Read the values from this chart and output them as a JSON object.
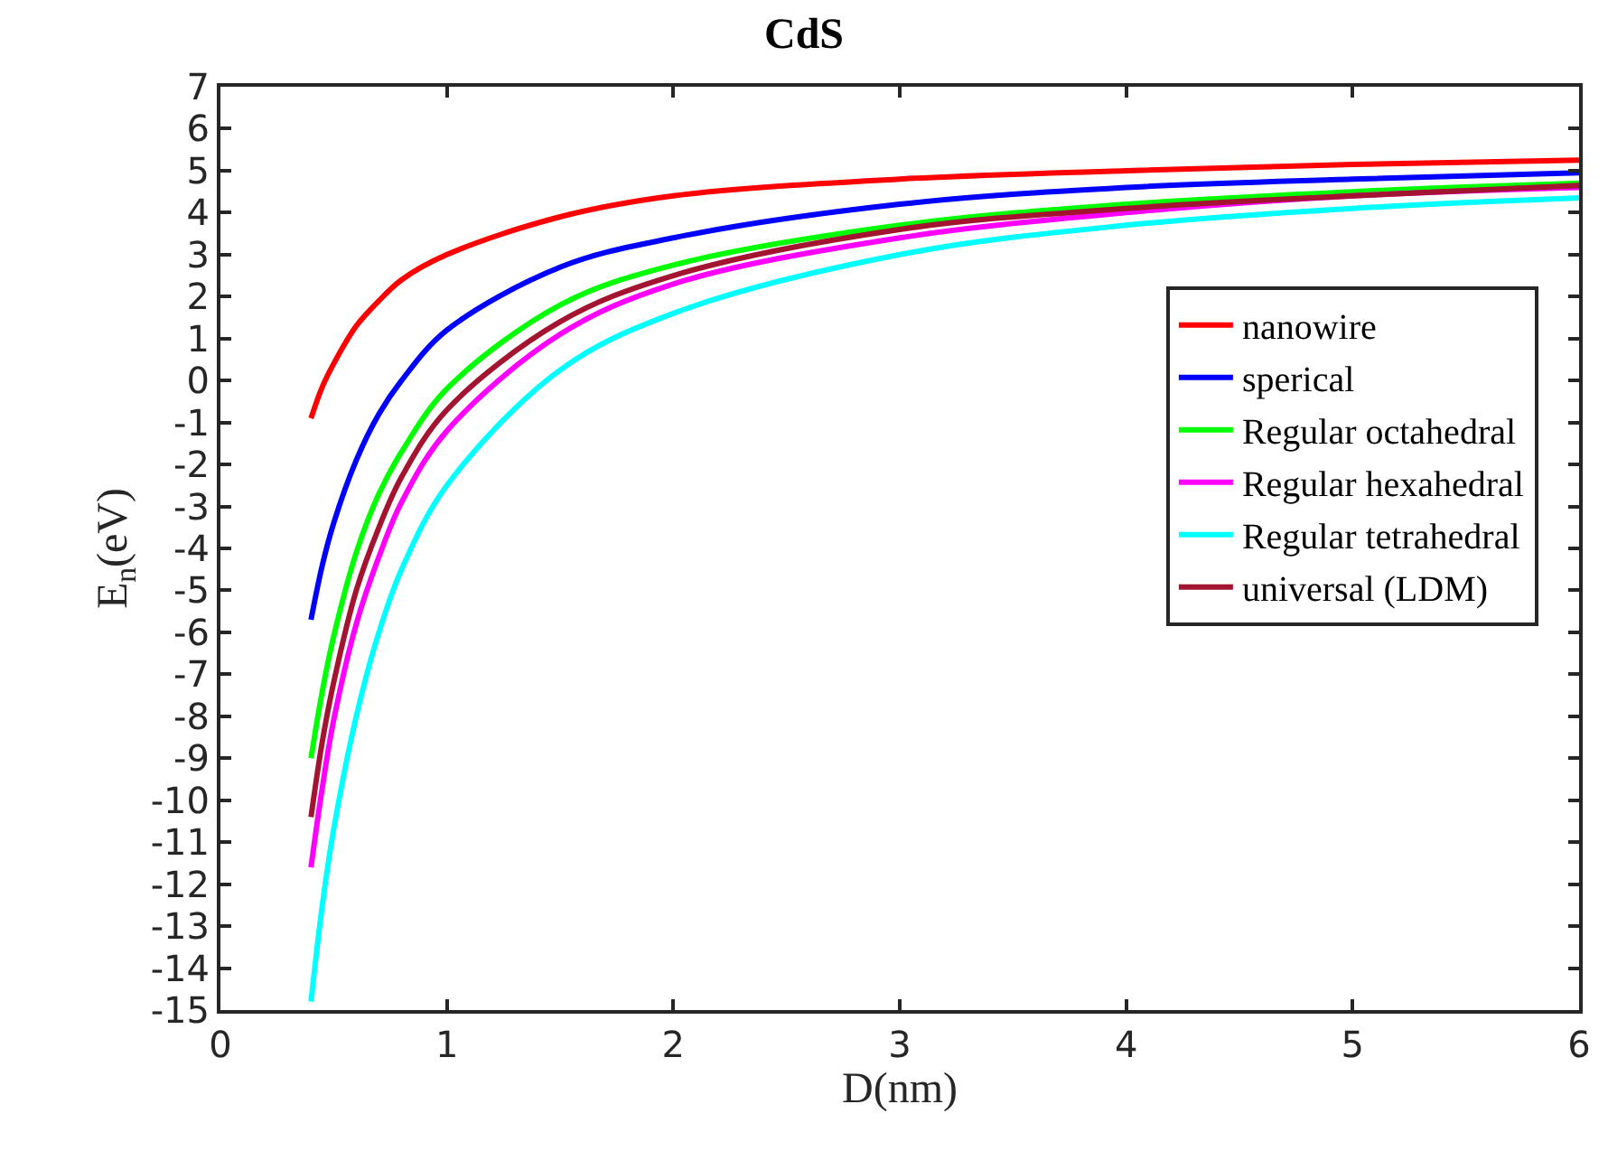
{
  "chart_data": {
    "type": "line",
    "title": "CdS",
    "xlabel": "D(nm)",
    "ylabel": "E$_{n}$(eV)",
    "x": [
      0.4,
      0.45,
      0.5,
      0.6,
      0.7,
      0.8,
      1,
      1.5,
      2,
      3,
      4,
      5,
      6
    ],
    "series": [
      {
        "name": "nanowire",
        "color": "#ff0000",
        "values": [
          -0.9,
          -0.15,
          0.4,
          1.3,
          1.9,
          2.4,
          3.0,
          3.9,
          4.4,
          4.8,
          5.0,
          5.15,
          5.25
        ]
      },
      {
        "name": "sperical",
        "color": "#0000ff",
        "values": [
          -5.7,
          -4.4,
          -3.4,
          -1.9,
          -0.8,
          0.0,
          1.2,
          2.7,
          3.4,
          4.2,
          4.6,
          4.8,
          4.95
        ]
      },
      {
        "name": "Regular octahedral",
        "color": "#00ff00",
        "values": [
          -9.0,
          -7.4,
          -6.1,
          -4.1,
          -2.7,
          -1.7,
          -0.2,
          1.8,
          2.75,
          3.7,
          4.2,
          4.5,
          4.7
        ]
      },
      {
        "name": "Regular hexahedral",
        "color": "#ff00ff",
        "values": [
          -11.6,
          -9.7,
          -8.1,
          -5.8,
          -4.2,
          -2.9,
          -1.2,
          1.1,
          2.3,
          3.4,
          4.0,
          4.4,
          4.6
        ]
      },
      {
        "name": "Regular tetrahedral",
        "color": "#00ffff",
        "values": [
          -14.8,
          -12.5,
          -10.7,
          -8.0,
          -6.0,
          -4.5,
          -2.5,
          0.25,
          1.6,
          3.0,
          3.7,
          4.1,
          4.35
        ]
      },
      {
        "name": "universal (LDM)",
        "color": "#a2142f",
        "values": [
          -10.4,
          -8.6,
          -7.2,
          -5.0,
          -3.5,
          -2.3,
          -0.7,
          1.4,
          2.5,
          3.6,
          4.1,
          4.4,
          4.65
        ]
      }
    ],
    "xlim": [
      0,
      6
    ],
    "xticks": [
      0,
      1,
      2,
      3,
      4,
      5,
      6
    ],
    "ylim": [
      -15,
      7
    ],
    "yticks": [
      -15,
      -14,
      -13,
      -12,
      -11,
      -10,
      -9,
      -8,
      -7,
      -6,
      -5,
      -4,
      -3,
      -2,
      -1,
      0,
      1,
      2,
      3,
      4,
      5,
      6,
      7
    ],
    "legend": "right",
    "marker": "none",
    "line_style": "solid"
  }
}
